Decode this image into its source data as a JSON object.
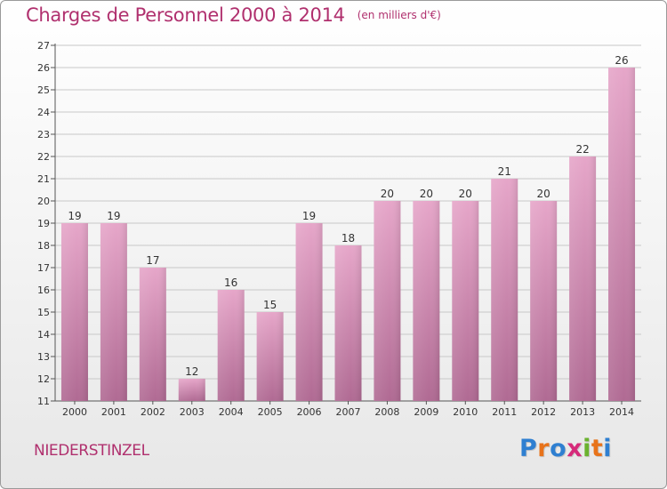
{
  "header": {
    "title": "Charges de Personnel 2000 à 2014",
    "subtitle": "(en milliers d'€)"
  },
  "footer": {
    "place": "NIEDERSTINZEL",
    "brand": "Proxiti"
  },
  "colors": {
    "accent": "#b0306e",
    "bar_top": "#e6a6c9",
    "bar_bottom": "#b06a93",
    "grid": "#c8c8c8"
  },
  "chart_data": {
    "type": "bar",
    "title": "Charges de Personnel 2000 à 2014",
    "subtitle": "(en milliers d'€)",
    "categories": [
      "2000",
      "2001",
      "2002",
      "2003",
      "2004",
      "2005",
      "2006",
      "2007",
      "2008",
      "2009",
      "2010",
      "2011",
      "2012",
      "2013",
      "2014"
    ],
    "values": [
      19,
      19,
      17,
      12,
      16,
      15,
      19,
      18,
      20,
      20,
      20,
      21,
      20,
      22,
      26
    ],
    "data_labels": [
      "19",
      "19",
      "17",
      "12",
      "16",
      "15",
      "19",
      "18",
      "20",
      "20",
      "20",
      "21",
      "20",
      "22",
      "26"
    ],
    "yticks": [
      "11",
      "12",
      "13",
      "14",
      "15",
      "16",
      "17",
      "18",
      "19",
      "20",
      "21",
      "22",
      "23",
      "24",
      "25",
      "26",
      "27"
    ],
    "ylim": [
      11,
      27
    ],
    "grid": true,
    "xlabel": "",
    "ylabel": ""
  }
}
